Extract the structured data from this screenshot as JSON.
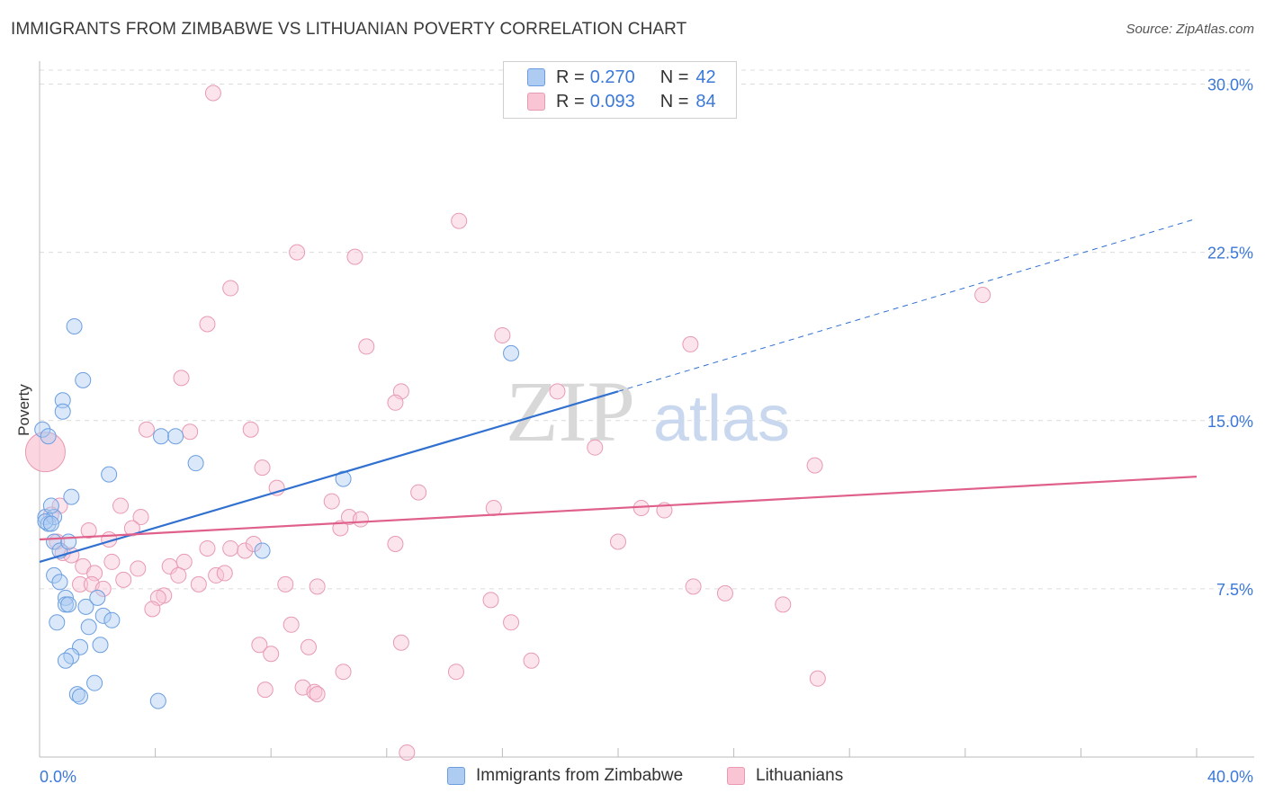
{
  "title": "IMMIGRANTS FROM ZIMBABWE VS LITHUANIAN POVERTY CORRELATION CHART",
  "source": "Source: ZipAtlas.com",
  "watermark": {
    "zip": "ZIP",
    "atlas": "atlas"
  },
  "legend_top": [
    {
      "r_label": "R =",
      "r_value": "0.270",
      "n_label": "N =",
      "n_value": "42",
      "color": "#aecbf1",
      "border": "#6b9ee0"
    },
    {
      "r_label": "R =",
      "r_value": "0.093",
      "n_label": "N =",
      "n_value": "84",
      "color": "#f9c4d4",
      "border": "#e89ab3"
    }
  ],
  "legend_bottom": [
    {
      "label": "Immigrants from Zimbabwe",
      "color": "#aecbf1",
      "border": "#6b9ee0"
    },
    {
      "label": "Lithuanians",
      "color": "#f9c4d4",
      "border": "#e89ab3"
    }
  ],
  "colors": {
    "blue_line": "#3070d0",
    "pink_line": "#e0608c",
    "tick_text": "#3b78d8",
    "grid": "#dcdcdc"
  },
  "chart_data": {
    "type": "scatter",
    "title": "IMMIGRANTS FROM ZIMBABWE VS LITHUANIAN POVERTY CORRELATION CHART",
    "xlabel": "",
    "ylabel": "Poverty",
    "xlim": [
      0,
      40
    ],
    "ylim": [
      0,
      30.5
    ],
    "x_tick_labels": [
      "0.0%",
      "40.0%"
    ],
    "y_ticks": [
      7.5,
      15.0,
      22.5,
      30.0
    ],
    "y_tick_labels": [
      "7.5%",
      "15.0%",
      "22.5%",
      "30.0%"
    ],
    "grid": "horizontal dashed",
    "legend_position": "top-center",
    "series": [
      {
        "name": "Immigrants from Zimbabwe",
        "color": "#aecbf1",
        "trend": {
          "x": [
            0,
            20
          ],
          "y": [
            8.7,
            16.3
          ],
          "dashed_extension_to": [
            40,
            24.0
          ]
        },
        "points": [
          [
            0.1,
            14.6
          ],
          [
            0.3,
            14.3
          ],
          [
            0.2,
            10.7
          ],
          [
            0.3,
            10.4
          ],
          [
            0.5,
            10.7
          ],
          [
            0.4,
            11.2
          ],
          [
            1.2,
            19.2
          ],
          [
            1.5,
            16.8
          ],
          [
            0.8,
            15.9
          ],
          [
            0.8,
            15.4
          ],
          [
            1.1,
            11.6
          ],
          [
            0.5,
            9.6
          ],
          [
            0.7,
            9.2
          ],
          [
            1.0,
            9.6
          ],
          [
            0.5,
            8.1
          ],
          [
            0.7,
            7.8
          ],
          [
            0.9,
            7.1
          ],
          [
            0.9,
            6.8
          ],
          [
            1.0,
            6.8
          ],
          [
            0.6,
            6.0
          ],
          [
            1.6,
            6.7
          ],
          [
            1.7,
            5.8
          ],
          [
            2.0,
            7.1
          ],
          [
            2.2,
            6.3
          ],
          [
            2.5,
            6.1
          ],
          [
            1.4,
            4.9
          ],
          [
            1.1,
            4.5
          ],
          [
            0.9,
            4.3
          ],
          [
            2.1,
            5.0
          ],
          [
            1.9,
            3.3
          ],
          [
            1.3,
            2.8
          ],
          [
            1.4,
            2.7
          ],
          [
            4.1,
            2.5
          ],
          [
            2.4,
            12.6
          ],
          [
            4.2,
            14.3
          ],
          [
            4.7,
            14.3
          ],
          [
            5.4,
            13.1
          ],
          [
            10.5,
            12.4
          ],
          [
            7.7,
            9.2
          ],
          [
            16.3,
            18.0
          ],
          [
            0.2,
            10.5
          ],
          [
            0.4,
            10.4
          ]
        ]
      },
      {
        "name": "Lithuanians",
        "color": "#f9c4d4",
        "trend": {
          "x": [
            0,
            40
          ],
          "y": [
            9.7,
            12.5
          ]
        },
        "points": [
          [
            0.2,
            13.6
          ],
          [
            6.0,
            29.6
          ],
          [
            14.5,
            23.9
          ],
          [
            8.9,
            22.5
          ],
          [
            10.9,
            22.3
          ],
          [
            6.6,
            20.9
          ],
          [
            5.8,
            19.3
          ],
          [
            16.0,
            18.8
          ],
          [
            11.3,
            18.3
          ],
          [
            22.5,
            18.4
          ],
          [
            32.6,
            20.6
          ],
          [
            4.9,
            16.9
          ],
          [
            12.5,
            16.3
          ],
          [
            12.3,
            15.8
          ],
          [
            17.9,
            16.3
          ],
          [
            3.7,
            14.6
          ],
          [
            5.2,
            14.5
          ],
          [
            7.3,
            14.6
          ],
          [
            19.2,
            13.8
          ],
          [
            7.7,
            12.9
          ],
          [
            8.2,
            12.0
          ],
          [
            10.1,
            11.4
          ],
          [
            13.1,
            11.8
          ],
          [
            15.7,
            11.1
          ],
          [
            20.8,
            11.1
          ],
          [
            21.6,
            11.0
          ],
          [
            26.8,
            13.0
          ],
          [
            2.8,
            11.2
          ],
          [
            3.5,
            10.7
          ],
          [
            1.7,
            10.1
          ],
          [
            3.2,
            10.2
          ],
          [
            10.4,
            10.2
          ],
          [
            10.7,
            10.7
          ],
          [
            11.1,
            10.6
          ],
          [
            2.4,
            9.7
          ],
          [
            5.8,
            9.3
          ],
          [
            6.6,
            9.3
          ],
          [
            7.1,
            9.2
          ],
          [
            7.4,
            9.5
          ],
          [
            12.3,
            9.5
          ],
          [
            20.0,
            9.6
          ],
          [
            0.6,
            9.6
          ],
          [
            0.8,
            9.1
          ],
          [
            1.1,
            9.0
          ],
          [
            1.5,
            8.5
          ],
          [
            1.9,
            8.2
          ],
          [
            2.5,
            8.7
          ],
          [
            3.4,
            8.4
          ],
          [
            4.5,
            8.5
          ],
          [
            5.0,
            8.7
          ],
          [
            4.8,
            8.1
          ],
          [
            6.1,
            8.1
          ],
          [
            6.4,
            8.2
          ],
          [
            2.9,
            7.9
          ],
          [
            1.4,
            7.7
          ],
          [
            1.8,
            7.7
          ],
          [
            2.2,
            7.5
          ],
          [
            5.5,
            7.7
          ],
          [
            8.5,
            7.7
          ],
          [
            9.6,
            7.6
          ],
          [
            4.3,
            7.2
          ],
          [
            4.1,
            7.1
          ],
          [
            3.9,
            6.6
          ],
          [
            15.6,
            7.0
          ],
          [
            22.6,
            7.6
          ],
          [
            23.7,
            7.3
          ],
          [
            25.7,
            6.8
          ],
          [
            8.7,
            5.9
          ],
          [
            7.6,
            5.0
          ],
          [
            9.3,
            4.9
          ],
          [
            12.5,
            5.1
          ],
          [
            16.3,
            6.0
          ],
          [
            8.0,
            4.6
          ],
          [
            17.0,
            4.3
          ],
          [
            10.5,
            3.8
          ],
          [
            14.4,
            3.8
          ],
          [
            26.9,
            3.5
          ],
          [
            7.8,
            3.0
          ],
          [
            9.1,
            3.1
          ],
          [
            9.5,
            2.9
          ],
          [
            9.6,
            2.8
          ],
          [
            12.7,
            0.2
          ],
          [
            0.7,
            11.2
          ],
          [
            0.4,
            10.8
          ]
        ]
      }
    ]
  }
}
